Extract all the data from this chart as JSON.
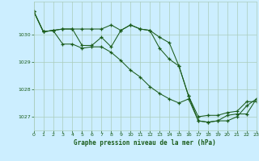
{
  "background_color": "#cceeff",
  "grid_color": "#aaccbb",
  "line_color": "#1a5c1a",
  "marker_color": "#1a5c1a",
  "title": "Graphe pression niveau de la mer (hPa)",
  "title_color": "#1a5c1a",
  "xlim": [
    0,
    23
  ],
  "ylim": [
    1026.5,
    1031.2
  ],
  "yticks": [
    1027,
    1028,
    1029,
    1030
  ],
  "xticks": [
    0,
    1,
    2,
    3,
    4,
    5,
    6,
    7,
    8,
    9,
    10,
    11,
    12,
    13,
    14,
    15,
    16,
    17,
    18,
    19,
    20,
    21,
    22,
    23
  ],
  "series": [
    {
      "x": [
        0,
        1,
        2,
        3,
        4,
        5,
        6,
        7,
        8,
        9,
        10,
        11,
        12,
        13,
        14,
        15,
        16,
        17,
        18,
        19,
        20,
        21,
        22,
        23
      ],
      "y": [
        1030.85,
        1030.1,
        1030.15,
        1030.2,
        1030.2,
        1030.2,
        1030.2,
        1030.2,
        1030.35,
        1030.15,
        1030.35,
        1030.2,
        1030.15,
        1029.9,
        1029.7,
        1028.85,
        1027.75,
        1027.0,
        1027.05,
        1027.05,
        1027.15,
        1027.2,
        1027.55,
        1027.55
      ]
    },
    {
      "x": [
        0,
        1,
        2,
        3,
        4,
        5,
        6,
        7,
        8,
        9,
        10,
        11,
        12,
        13,
        14,
        15,
        16,
        17,
        18,
        19,
        20,
        21,
        22,
        23
      ],
      "y": [
        1030.85,
        1030.1,
        1030.15,
        1029.65,
        1029.65,
        1029.5,
        1029.55,
        1029.55,
        1029.35,
        1029.05,
        1028.7,
        1028.45,
        1028.1,
        1027.85,
        1027.65,
        1027.5,
        1027.65,
        1026.85,
        1026.8,
        1026.85,
        1027.05,
        1027.1,
        1027.1,
        1027.65
      ]
    },
    {
      "x": [
        0,
        1,
        2,
        3,
        4,
        5,
        6,
        7,
        8,
        9,
        10,
        11,
        12,
        13,
        14,
        15,
        16,
        17,
        18,
        19,
        20,
        21,
        22,
        23
      ],
      "y": [
        1030.85,
        1030.1,
        1030.15,
        1030.2,
        1030.2,
        1029.6,
        1029.6,
        1029.9,
        1029.55,
        1030.15,
        1030.35,
        1030.2,
        1030.15,
        1029.5,
        1029.1,
        1028.85,
        1027.75,
        1026.85,
        1026.8,
        1026.85,
        1026.85,
        1027.0,
        1027.4,
        1027.65
      ]
    }
  ]
}
